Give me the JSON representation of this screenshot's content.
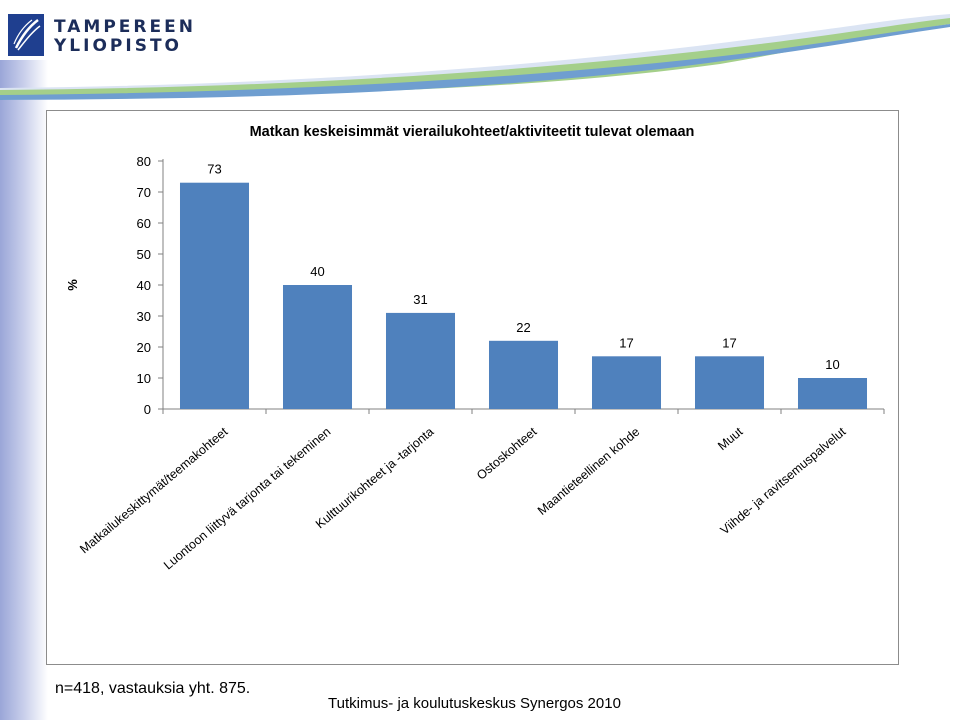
{
  "header": {
    "logo_line1": "TAMPEREEN",
    "logo_line2": "YLIOPISTO"
  },
  "colors": {
    "bar": "#4f81bd",
    "logo_blue": "#1f3f8f",
    "swoosh_blue": "#c9d8ef",
    "swoosh_green": "#a4cf8a"
  },
  "chart_data": {
    "type": "bar",
    "title": "Matkan keskeisimmät vierailukohteet/aktiviteetit tulevat olemaan",
    "xlabel": "",
    "ylabel": "%",
    "ylim": [
      0,
      80
    ],
    "yticks": [
      0,
      10,
      20,
      30,
      40,
      50,
      60,
      70,
      80
    ],
    "grid": false,
    "data_labels": true,
    "categories": [
      "Matkailukeskittymät/teemakohteet",
      "Luontoon liittyvä tarjonta tai tekeminen",
      "Kulttuurikohteet ja -tarjonta",
      "Ostoskohteet",
      "Maantieteellinen kohde",
      "Muut",
      "Viihde- ja ravitsemuspalvelut"
    ],
    "values": [
      73,
      40,
      31,
      22,
      17,
      17,
      10
    ]
  },
  "footer": {
    "note": "n=418, vastauksia yht. 875.",
    "source": "Tutkimus- ja koulutuskeskus Synergos 2010"
  }
}
